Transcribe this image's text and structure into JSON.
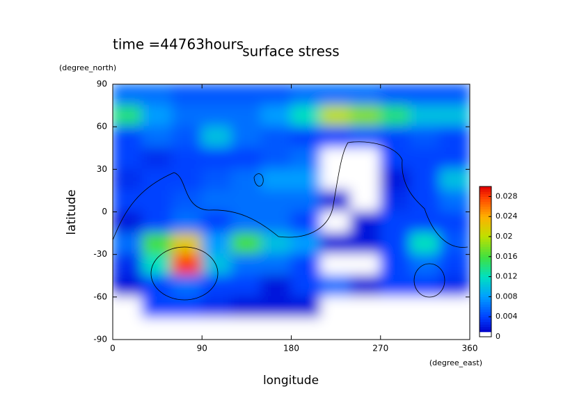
{
  "chart_data": {
    "type": "contour",
    "title": "surface stress",
    "subtitle": "time =44763hours",
    "xlabel": "longitude",
    "xunit": "(degree_east)",
    "ylabel": "latitude",
    "yunit": "(degree_north)",
    "xlim": [
      0,
      360
    ],
    "ylim": [
      -90,
      90
    ],
    "xticks": [
      0,
      90,
      180,
      270,
      360
    ],
    "yticks": [
      -90,
      -60,
      -30,
      0,
      30,
      60,
      90
    ],
    "x": [
      15,
      45,
      75,
      105,
      135,
      165,
      195,
      225,
      255,
      285,
      315,
      345
    ],
    "y": [
      82.5,
      67.5,
      52.5,
      37.5,
      22.5,
      7.5,
      -7.5,
      -22.5,
      -37.5,
      -52.5,
      -67.5,
      -82.5
    ],
    "z": [
      [
        0.006,
        0.006,
        0.005,
        0.005,
        0.005,
        0.005,
        0.006,
        0.006,
        0.006,
        0.005,
        0.005,
        0.005
      ],
      [
        0.014,
        0.008,
        0.006,
        0.006,
        0.006,
        0.008,
        0.012,
        0.02,
        0.018,
        0.014,
        0.01,
        0.01
      ],
      [
        0.004,
        0.006,
        0.005,
        0.01,
        0.006,
        0.005,
        0.004,
        0.004,
        0.005,
        0.004,
        0.005,
        0.004
      ],
      [
        0.004,
        0.003,
        0.004,
        0.004,
        0.004,
        0.005,
        0.006,
        0,
        0,
        0.004,
        0.004,
        0.004
      ],
      [
        0.003,
        0.004,
        0.004,
        0.005,
        0.006,
        0.008,
        0.008,
        0,
        0,
        0.002,
        0.004,
        0.01
      ],
      [
        0.004,
        0.004,
        0.005,
        0.006,
        0.006,
        0.006,
        0.006,
        0.002,
        0,
        0.003,
        0.004,
        0.006
      ],
      [
        0.002,
        0.004,
        0.006,
        0.004,
        0.006,
        0.006,
        0.004,
        0,
        0.002,
        0.004,
        0.004,
        0.004
      ],
      [
        0.006,
        0.016,
        0.022,
        0.008,
        0.016,
        0.01,
        0.008,
        0.002,
        0.002,
        0.004,
        0.012,
        0.005
      ],
      [
        0.003,
        0.012,
        0.028,
        0.01,
        0.006,
        0.006,
        0.004,
        0,
        0,
        0.004,
        0.006,
        0.004
      ],
      [
        0.002,
        0.004,
        0.006,
        0.004,
        0.004,
        0.002,
        0.004,
        0.006,
        0.002,
        0.004,
        0.004,
        0.003
      ],
      [
        0,
        0.004,
        0.004,
        0.003,
        0.002,
        0.002,
        0.002,
        0,
        0,
        0,
        0,
        0
      ],
      [
        0,
        0,
        0,
        0,
        0,
        0,
        0,
        0,
        0,
        0,
        0,
        0
      ]
    ],
    "zlim": [
      0,
      0.03
    ],
    "zticks": [
      0,
      0.004,
      0.008,
      0.012,
      0.016,
      0.02,
      0.024,
      0.028
    ]
  }
}
